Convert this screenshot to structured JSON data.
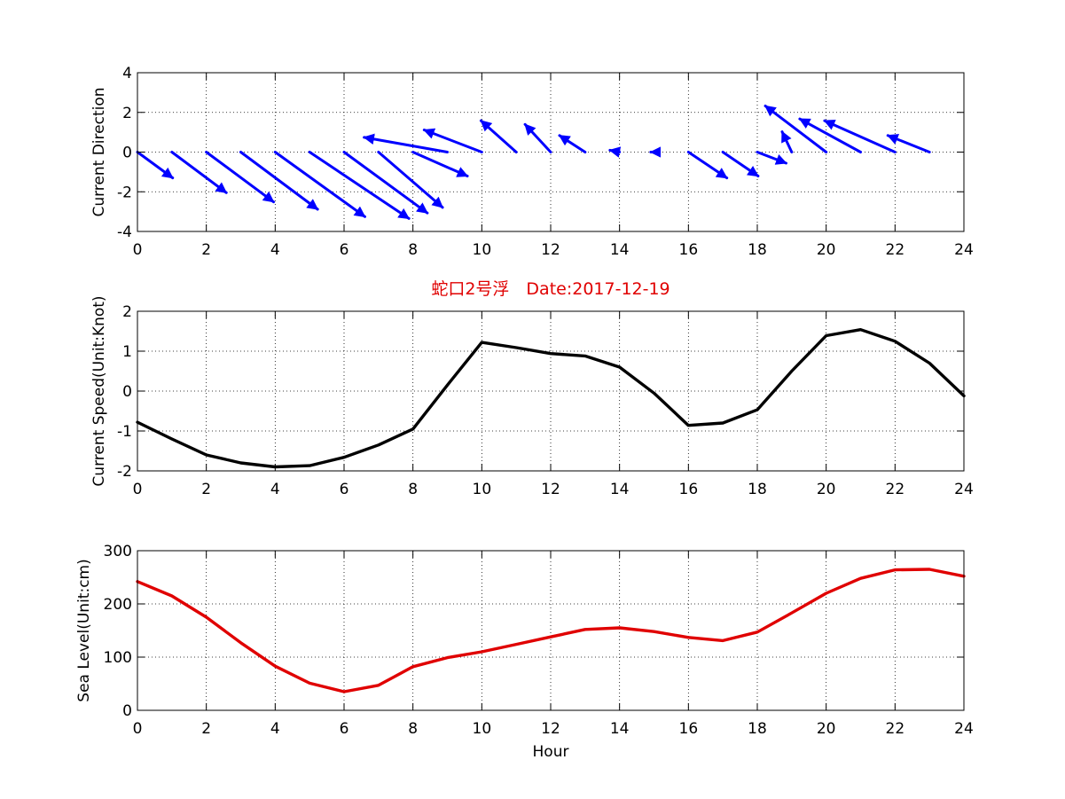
{
  "figure": {
    "title": "蛇口2号浮　Date:2017-12-19",
    "colors": {
      "direction": "#0000ff",
      "speed": "#000000",
      "sea_level": "#e00000",
      "title": "#e00000"
    }
  },
  "chart_data": [
    {
      "type": "quiver",
      "ylabel": "Current Direction",
      "xlabel": "",
      "xlim": [
        0,
        24
      ],
      "ylim": [
        -4,
        4
      ],
      "xticks": [
        0,
        2,
        4,
        6,
        8,
        10,
        12,
        14,
        16,
        18,
        20,
        22,
        24
      ],
      "yticks": [
        -4,
        -2,
        0,
        2,
        4
      ],
      "grid": true,
      "vectors": [
        {
          "x": 0,
          "u": 1.1,
          "v": -1.4
        },
        {
          "x": 1,
          "u": 1.7,
          "v": -2.2
        },
        {
          "x": 2,
          "u": 2.1,
          "v": -2.7
        },
        {
          "x": 3,
          "u": 2.4,
          "v": -3.1
        },
        {
          "x": 4,
          "u": 2.8,
          "v": -3.5
        },
        {
          "x": 5,
          "u": 3.1,
          "v": -3.6
        },
        {
          "x": 6,
          "u": 2.6,
          "v": -3.3
        },
        {
          "x": 7,
          "u": 2.0,
          "v": -3.0
        },
        {
          "x": 8,
          "u": 1.7,
          "v": -1.3
        },
        {
          "x": 9,
          "u": -2.6,
          "v": 0.8
        },
        {
          "x": 10,
          "u": -1.8,
          "v": 1.2
        },
        {
          "x": 11,
          "u": -1.1,
          "v": 1.7
        },
        {
          "x": 12,
          "u": -0.8,
          "v": 1.5
        },
        {
          "x": 13,
          "u": -0.8,
          "v": 0.9
        },
        {
          "x": 14,
          "u": -0.3,
          "v": 0.1
        },
        {
          "x": 15,
          "u": -0.1,
          "v": 0.0
        },
        {
          "x": 16,
          "u": 1.2,
          "v": -1.4
        },
        {
          "x": 17,
          "u": 1.1,
          "v": -1.3
        },
        {
          "x": 18,
          "u": 0.9,
          "v": -0.6
        },
        {
          "x": 19,
          "u": -0.3,
          "v": 1.1
        },
        {
          "x": 20,
          "u": -1.9,
          "v": 2.5
        },
        {
          "x": 21,
          "u": -1.9,
          "v": 1.8
        },
        {
          "x": 22,
          "u": -2.2,
          "v": 1.7
        },
        {
          "x": 23,
          "u": -1.3,
          "v": 0.9
        }
      ]
    },
    {
      "type": "line",
      "title": "蛇口2号浮　Date:2017-12-19",
      "ylabel": "Current Speed(Unit:Knot)",
      "xlabel": "",
      "xlim": [
        0,
        24
      ],
      "ylim": [
        -2,
        2
      ],
      "xticks": [
        0,
        2,
        4,
        6,
        8,
        10,
        12,
        14,
        16,
        18,
        20,
        22,
        24
      ],
      "yticks": [
        -2,
        -1,
        0,
        1,
        2
      ],
      "grid": true,
      "x": [
        0,
        1,
        2,
        3,
        4,
        5,
        6,
        7,
        8,
        9,
        10,
        11,
        12,
        13,
        14,
        15,
        16,
        17,
        18,
        19,
        20,
        21,
        22,
        23,
        24
      ],
      "series": [
        {
          "values": [
            -0.78,
            -1.2,
            -1.6,
            -1.8,
            -1.9,
            -1.87,
            -1.66,
            -1.35,
            -0.95,
            0.15,
            1.22,
            1.09,
            0.94,
            0.88,
            0.6,
            -0.05,
            -0.86,
            -0.8,
            -0.47,
            0.5,
            1.39,
            1.54,
            1.25,
            0.7,
            -0.12
          ]
        }
      ]
    },
    {
      "type": "line",
      "ylabel": "Sea Level(Unit:cm)",
      "xlabel": "Hour",
      "xlim": [
        0,
        24
      ],
      "ylim": [
        0,
        300
      ],
      "xticks": [
        0,
        2,
        4,
        6,
        8,
        10,
        12,
        14,
        16,
        18,
        20,
        22,
        24
      ],
      "yticks": [
        0,
        100,
        200,
        300
      ],
      "grid": true,
      "x": [
        0,
        1,
        2,
        3,
        4,
        5,
        6,
        7,
        8,
        9,
        10,
        11,
        12,
        13,
        14,
        15,
        16,
        17,
        18,
        19,
        20,
        21,
        22,
        23,
        24
      ],
      "series": [
        {
          "values": [
            242,
            215,
            175,
            127,
            83,
            51,
            35,
            47,
            82,
            99,
            110,
            124,
            138,
            152,
            155,
            148,
            137,
            131,
            147,
            183,
            220,
            248,
            264,
            265,
            252
          ]
        }
      ]
    }
  ]
}
